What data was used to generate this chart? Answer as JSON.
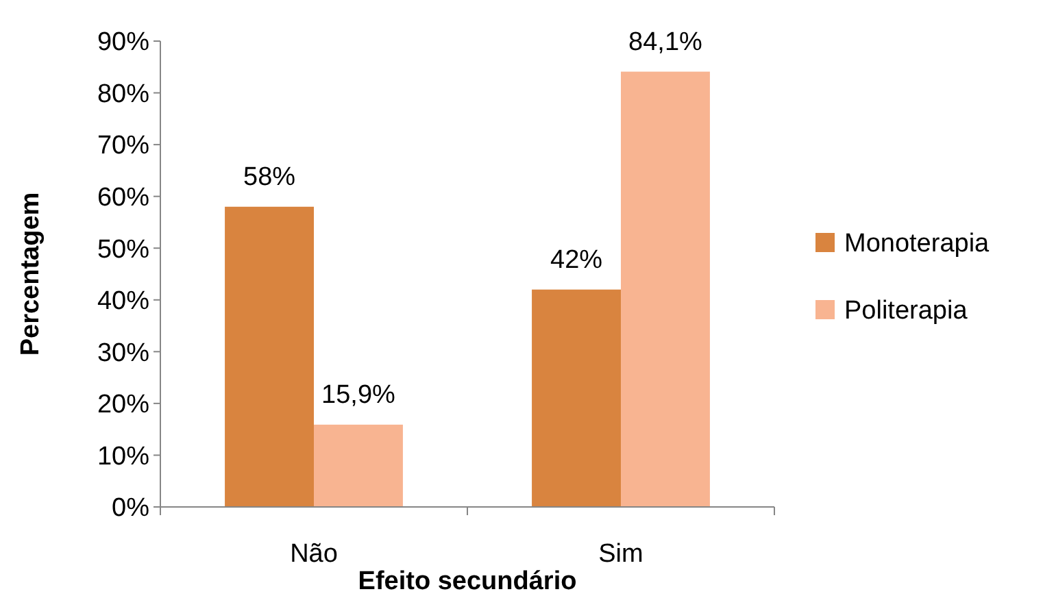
{
  "chart_data": {
    "type": "bar",
    "xlabel": "Efeito secundário",
    "ylabel": "Percentagem",
    "categories": [
      "Não",
      "Sim"
    ],
    "series": [
      {
        "name": "Monoterapia",
        "color": "#d9843f",
        "values": [
          58,
          42
        ],
        "value_labels": [
          "58%",
          "42%"
        ]
      },
      {
        "name": "Politerapia",
        "color": "#f8b491",
        "values": [
          15.9,
          84.1
        ],
        "value_labels": [
          "15,9%",
          "84,1%"
        ]
      }
    ],
    "ylim": [
      0,
      90
    ],
    "yticks": [
      {
        "value": 0,
        "label": "0%"
      },
      {
        "value": 10,
        "label": "10%"
      },
      {
        "value": 20,
        "label": "20%"
      },
      {
        "value": 30,
        "label": "30%"
      },
      {
        "value": 40,
        "label": "40%"
      },
      {
        "value": 50,
        "label": "50%"
      },
      {
        "value": 60,
        "label": "60%"
      },
      {
        "value": 70,
        "label": "70%"
      },
      {
        "value": 80,
        "label": "80%"
      },
      {
        "value": 90,
        "label": "90%"
      }
    ],
    "grid": false,
    "legend": "right"
  }
}
